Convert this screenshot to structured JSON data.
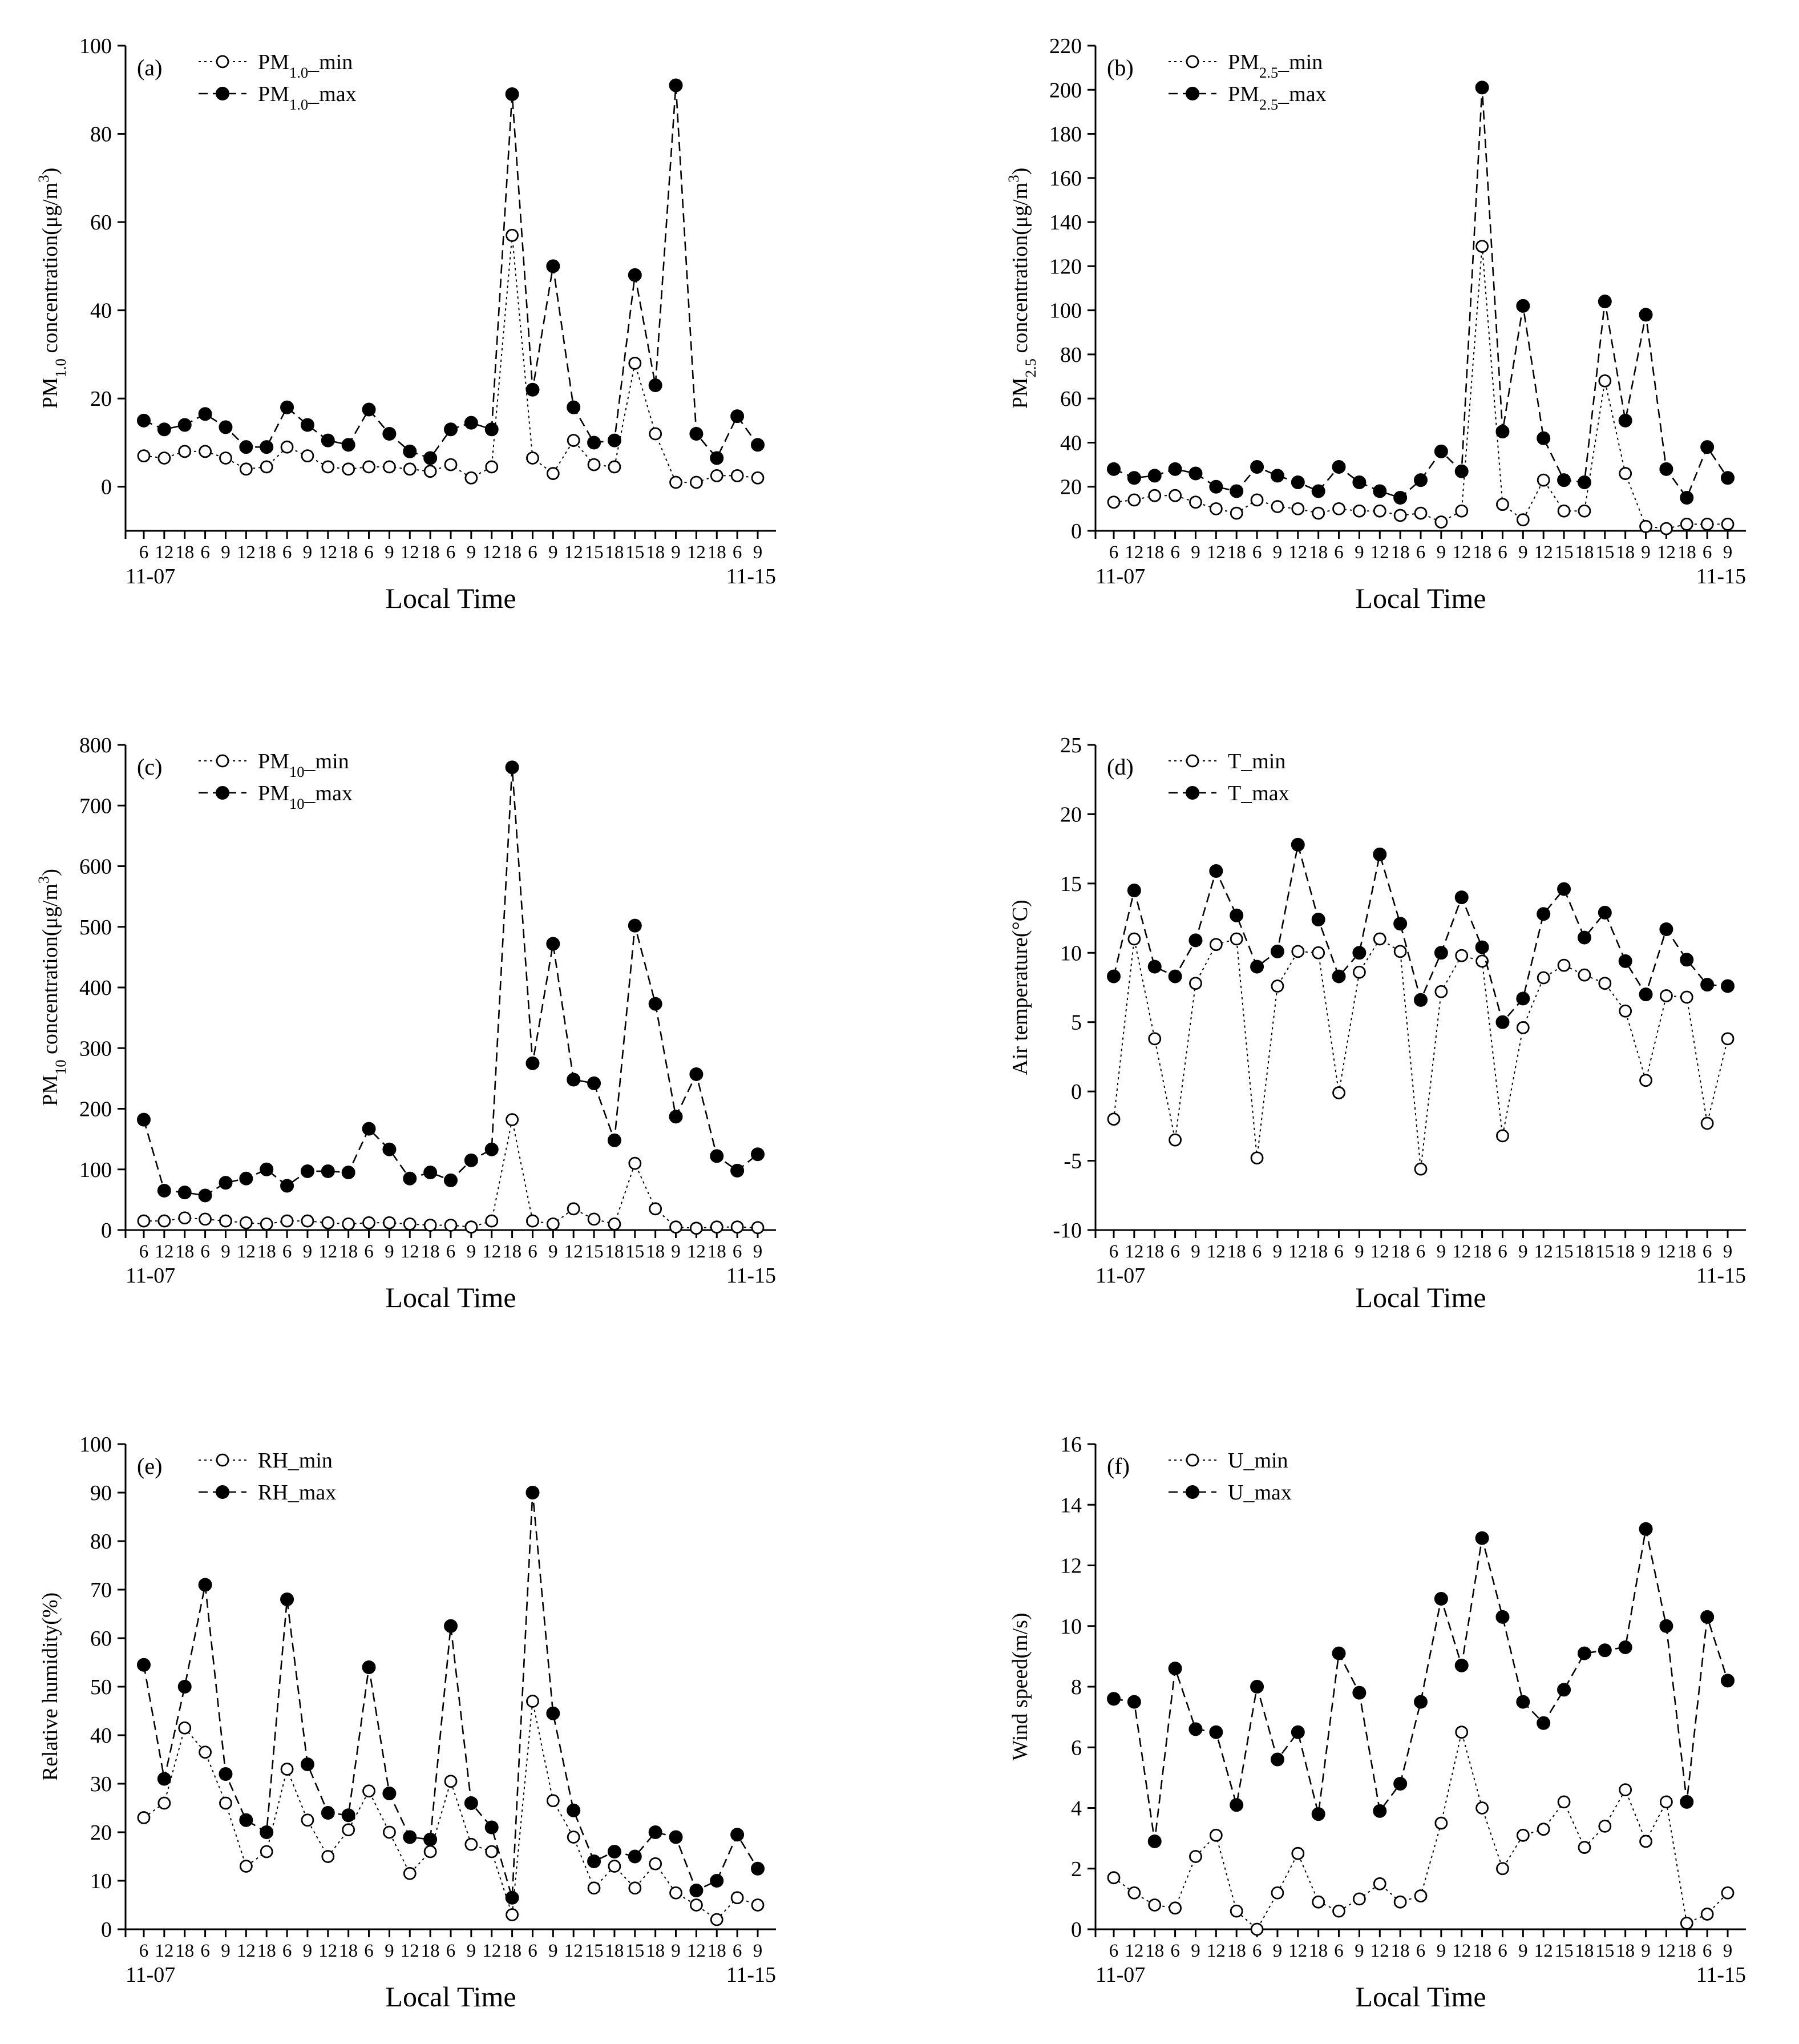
{
  "chart_data": [
    {
      "type": "line",
      "panel_label": "(a)",
      "ylabel": "PM1.0 concentration(μg/m3)",
      "xlabel": "Local Time",
      "ylim": [
        -10,
        100
      ],
      "yticks": [
        0,
        20,
        40,
        60,
        80,
        100
      ],
      "x_tick_labels": [
        "6",
        "12",
        "18",
        "6",
        "9",
        "12",
        "18",
        "6",
        "9",
        "12",
        "18",
        "6",
        "9",
        "12",
        "18",
        "6",
        "9",
        "12",
        "18",
        "6",
        "9",
        "12",
        "15",
        "18",
        "15",
        "18",
        "9",
        "12",
        "18",
        "6",
        "9"
      ],
      "date_start": "11-07",
      "date_end": "11-15",
      "series": [
        {
          "name": "PM1.0_min",
          "marker": "open-circle",
          "values": [
            7,
            6.5,
            8,
            8,
            6.5,
            4,
            4.5,
            9,
            7,
            4.5,
            4,
            4.5,
            4.5,
            4,
            3.5,
            5,
            2,
            4.5,
            57,
            6.5,
            3,
            10.5,
            5,
            4.5,
            28,
            12,
            1,
            1,
            2.5,
            2.5,
            2
          ]
        },
        {
          "name": "PM1.0_max",
          "marker": "filled-circle",
          "values": [
            15,
            13,
            14,
            16.5,
            13.5,
            9,
            9,
            18,
            14,
            10.5,
            9.5,
            17.5,
            12,
            8,
            6.5,
            13,
            14.5,
            13,
            89,
            22,
            50,
            18,
            10,
            10.5,
            48,
            23,
            91,
            12,
            6.5,
            16,
            9.5
          ]
        }
      ]
    },
    {
      "type": "line",
      "panel_label": "(b)",
      "ylabel": "PM2.5 concentration(μg/m3)",
      "xlabel": "Local Time",
      "ylim": [
        0,
        220
      ],
      "yticks": [
        0,
        20,
        40,
        60,
        80,
        100,
        120,
        140,
        160,
        180,
        200,
        220
      ],
      "x_tick_labels": [
        "6",
        "12",
        "18",
        "6",
        "9",
        "12",
        "18",
        "6",
        "9",
        "12",
        "18",
        "6",
        "9",
        "12",
        "18",
        "6",
        "9",
        "12",
        "18",
        "6",
        "9",
        "12",
        "15",
        "18",
        "15",
        "18",
        "9",
        "12",
        "18",
        "6",
        "9"
      ],
      "date_start": "11-07",
      "date_end": "11-15",
      "series": [
        {
          "name": "PM2.5_min",
          "marker": "open-circle",
          "values": [
            13,
            14,
            16,
            16,
            13,
            10,
            8,
            14,
            11,
            10,
            8,
            10,
            9,
            9,
            7,
            8,
            4,
            9,
            129,
            12,
            5,
            23,
            9,
            9,
            68,
            26,
            2,
            1,
            3,
            3,
            3
          ]
        },
        {
          "name": "PM2.5_max",
          "marker": "filled-circle",
          "values": [
            28,
            24,
            25,
            28,
            26,
            20,
            18,
            29,
            25,
            22,
            18,
            29,
            22,
            18,
            15,
            23,
            36,
            27,
            201,
            45,
            102,
            42,
            23,
            22,
            104,
            50,
            98,
            28,
            15,
            38,
            24
          ]
        }
      ]
    },
    {
      "type": "line",
      "panel_label": "(c)",
      "ylabel": "PM10 concentration(μg/m3)",
      "xlabel": "Local Time",
      "ylim": [
        0,
        800
      ],
      "yticks": [
        0,
        100,
        200,
        300,
        400,
        500,
        600,
        700,
        800
      ],
      "x_tick_labels": [
        "6",
        "12",
        "18",
        "6",
        "9",
        "12",
        "18",
        "6",
        "9",
        "12",
        "18",
        "6",
        "9",
        "12",
        "18",
        "6",
        "9",
        "12",
        "18",
        "6",
        "9",
        "12",
        "15",
        "18",
        "15",
        "18",
        "9",
        "12",
        "18",
        "6",
        "9"
      ],
      "date_start": "11-07",
      "date_end": "11-15",
      "series": [
        {
          "name": "PM10_min",
          "marker": "open-circle",
          "values": [
            15,
            15,
            20,
            18,
            15,
            12,
            10,
            15,
            15,
            12,
            10,
            12,
            12,
            10,
            8,
            8,
            5,
            15,
            182,
            15,
            10,
            35,
            18,
            10,
            110,
            35,
            5,
            3,
            5,
            5,
            4
          ]
        },
        {
          "name": "PM10_max",
          "marker": "filled-circle",
          "values": [
            182,
            65,
            62,
            57,
            78,
            85,
            100,
            73,
            97,
            97,
            95,
            167,
            133,
            85,
            95,
            82,
            115,
            133,
            763,
            275,
            472,
            248,
            242,
            148,
            502,
            373,
            187,
            257,
            122,
            98,
            125
          ]
        }
      ]
    },
    {
      "type": "line",
      "panel_label": "(d)",
      "ylabel": "Air temperature(°C)",
      "xlabel": "Local Time",
      "ylim": [
        -10,
        25
      ],
      "yticks": [
        -10,
        -5,
        0,
        5,
        10,
        15,
        20,
        25
      ],
      "x_tick_labels": [
        "6",
        "12",
        "18",
        "6",
        "9",
        "12",
        "18",
        "6",
        "9",
        "12",
        "18",
        "6",
        "9",
        "12",
        "18",
        "6",
        "9",
        "12",
        "18",
        "6",
        "9",
        "12",
        "15",
        "18",
        "15",
        "18",
        "9",
        "12",
        "18",
        "6",
        "9"
      ],
      "date_start": "11-07",
      "date_end": "11-15",
      "series": [
        {
          "name": "T_min",
          "marker": "open-circle",
          "values": [
            -2,
            11,
            3.8,
            -3.5,
            7.8,
            10.6,
            11,
            -4.8,
            7.6,
            10.1,
            10,
            -0.1,
            8.6,
            11,
            10.1,
            -5.6,
            7.2,
            9.8,
            9.4,
            -3.2,
            4.6,
            8.2,
            9.1,
            8.4,
            7.8,
            5.8,
            0.8,
            6.9,
            6.8,
            -2.3,
            3.8
          ]
        },
        {
          "name": "T_max",
          "marker": "filled-circle",
          "values": [
            8.3,
            14.5,
            9,
            8.3,
            10.9,
            15.9,
            12.7,
            9,
            10.1,
            17.8,
            12.4,
            8.3,
            10,
            17.1,
            12.1,
            6.6,
            10,
            14,
            10.4,
            5,
            6.7,
            12.8,
            14.6,
            11.1,
            12.9,
            9.4,
            7,
            11.7,
            9.5,
            7.7,
            7.6
          ]
        }
      ]
    },
    {
      "type": "line",
      "panel_label": "(e)",
      "ylabel": "Relative humidity(%)",
      "xlabel": "Local Time",
      "ylim": [
        0,
        100
      ],
      "yticks": [
        0,
        10,
        20,
        30,
        40,
        50,
        60,
        70,
        80,
        90,
        100
      ],
      "x_tick_labels": [
        "6",
        "12",
        "18",
        "6",
        "9",
        "12",
        "18",
        "6",
        "9",
        "12",
        "18",
        "6",
        "9",
        "12",
        "18",
        "6",
        "9",
        "12",
        "18",
        "6",
        "9",
        "12",
        "15",
        "18",
        "15",
        "18",
        "9",
        "12",
        "18",
        "6",
        "9"
      ],
      "date_start": "11-07",
      "date_end": "11-15",
      "series": [
        {
          "name": "RH_min",
          "marker": "open-circle",
          "values": [
            23,
            26,
            41.5,
            36.5,
            26,
            13,
            16,
            33,
            22.5,
            15,
            20.5,
            28.5,
            20,
            11.5,
            16,
            30.5,
            17.5,
            16,
            3,
            47,
            26.5,
            19,
            8.5,
            13,
            8.5,
            13.5,
            7.5,
            5,
            2,
            6.5,
            5
          ]
        },
        {
          "name": "RH_max",
          "marker": "filled-circle",
          "values": [
            54.5,
            31,
            50,
            71,
            32,
            22.5,
            20,
            68,
            34,
            24,
            23.5,
            54,
            28,
            19,
            18.5,
            62.5,
            26,
            21,
            6.5,
            90,
            44.5,
            24.5,
            14,
            16,
            15,
            20,
            19,
            8,
            10,
            19.5,
            12.5
          ]
        }
      ]
    },
    {
      "type": "line",
      "panel_label": "(f)",
      "ylabel": "Wind speed(m/s)",
      "xlabel": "Local Time",
      "ylim": [
        0,
        16
      ],
      "yticks": [
        0,
        2,
        4,
        6,
        8,
        10,
        12,
        14,
        16
      ],
      "x_tick_labels": [
        "6",
        "12",
        "18",
        "6",
        "9",
        "12",
        "18",
        "6",
        "9",
        "12",
        "18",
        "6",
        "9",
        "12",
        "18",
        "6",
        "9",
        "12",
        "18",
        "6",
        "9",
        "12",
        "15",
        "18",
        "15",
        "18",
        "9",
        "12",
        "18",
        "6",
        "9"
      ],
      "date_start": "11-07",
      "date_end": "11-15",
      "series": [
        {
          "name": "U_min",
          "marker": "open-circle",
          "values": [
            1.7,
            1.2,
            0.8,
            0.7,
            2.4,
            3.1,
            0.6,
            0,
            1.2,
            2.5,
            0.9,
            0.6,
            1,
            1.5,
            0.9,
            1.1,
            3.5,
            6.5,
            4,
            2,
            3.1,
            3.3,
            4.2,
            2.7,
            3.4,
            4.6,
            2.9,
            4.2,
            0.2,
            0.5,
            1.2
          ]
        },
        {
          "name": "U_max",
          "marker": "filled-circle",
          "values": [
            7.6,
            7.5,
            2.9,
            8.6,
            6.6,
            6.5,
            4.1,
            8,
            5.6,
            6.5,
            3.8,
            9.1,
            7.8,
            3.9,
            4.8,
            7.5,
            10.9,
            8.7,
            12.9,
            10.3,
            7.5,
            6.8,
            7.9,
            9.1,
            9.2,
            9.3,
            13.2,
            10,
            4.2,
            10.3,
            8.2
          ]
        }
      ]
    }
  ]
}
